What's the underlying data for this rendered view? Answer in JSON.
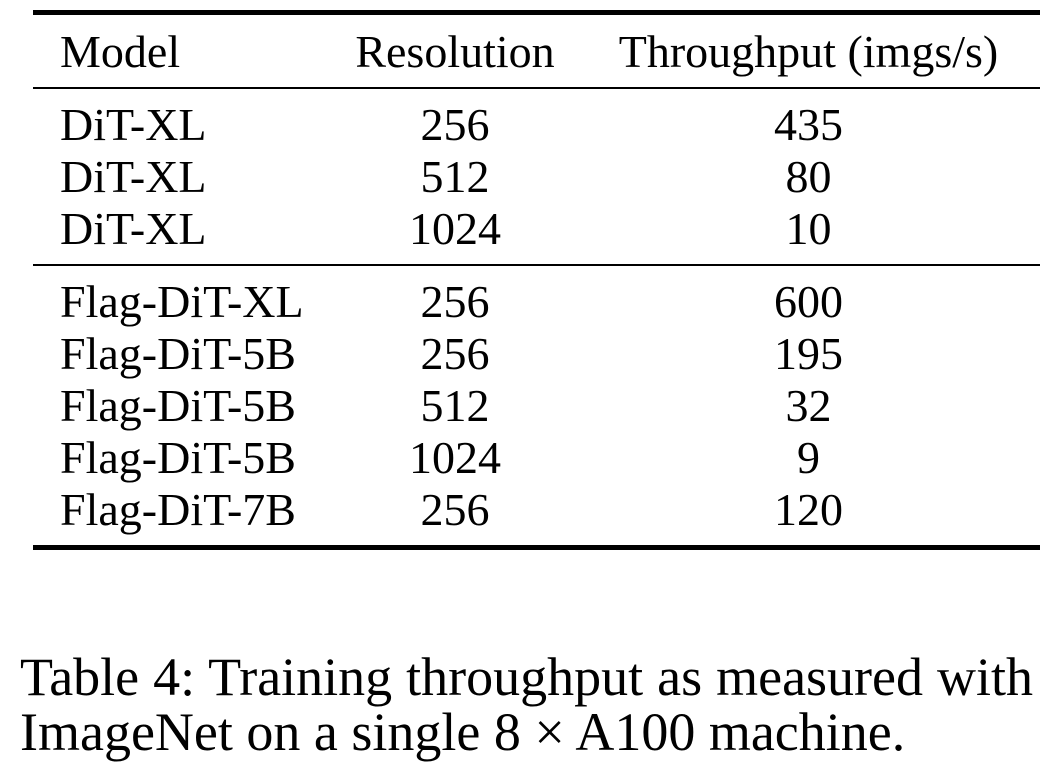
{
  "table": {
    "columns": [
      "Model",
      "Resolution",
      "Throughput (imgs/s)"
    ],
    "groups": [
      {
        "rows": [
          {
            "model": "DiT-XL",
            "resolution": "256",
            "throughput": "435"
          },
          {
            "model": "DiT-XL",
            "resolution": "512",
            "throughput": "80"
          },
          {
            "model": "DiT-XL",
            "resolution": "1024",
            "throughput": "10"
          }
        ]
      },
      {
        "rows": [
          {
            "model": "Flag-DiT-XL",
            "resolution": "256",
            "throughput": "600"
          },
          {
            "model": "Flag-DiT-5B",
            "resolution": "256",
            "throughput": "195"
          },
          {
            "model": "Flag-DiT-5B",
            "resolution": "512",
            "throughput": "32"
          },
          {
            "model": "Flag-DiT-5B",
            "resolution": "1024",
            "throughput": "9"
          },
          {
            "model": "Flag-DiT-7B",
            "resolution": "256",
            "throughput": "120"
          }
        ]
      }
    ]
  },
  "caption": {
    "line1": "Table 4: Training throughput as measured with",
    "line2": "ImageNet on a single 8 × A100 machine."
  },
  "colors": {
    "text": "#000000",
    "background": "#ffffff",
    "rule": "#000000"
  }
}
